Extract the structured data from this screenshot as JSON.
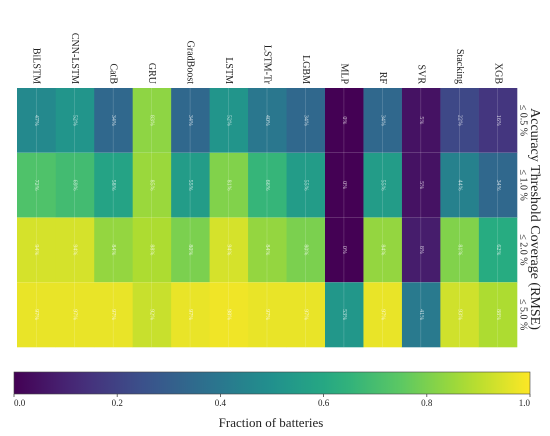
{
  "chart_data": {
    "type": "heatmap",
    "title": "Accuracy Threshold Coverage (RMSE)",
    "colorbar_label": "Fraction of batteries",
    "colorbar_ticks": [
      "0.0",
      "0.2",
      "0.4",
      "0.6",
      "0.8",
      "1.0"
    ],
    "models": [
      "XGB",
      "Stacking",
      "SVR",
      "RF",
      "MLP",
      "LGBM",
      "LSTM-Tr",
      "LSTM",
      "GradBoost",
      "GRU",
      "CatB",
      "CNN-LSTM",
      "BiLSTM"
    ],
    "thresholds": [
      "≤ 0.5 %",
      "≤ 1.0 %",
      "≤ 2.0 %",
      "≤ 5.0 %"
    ],
    "values": [
      [
        0.16,
        0.34,
        0.62,
        0.88
      ],
      [
        0.22,
        0.44,
        0.81,
        0.93
      ],
      [
        0.05,
        0.05,
        0.08,
        0.41
      ],
      [
        0.34,
        0.55,
        0.84,
        0.97
      ],
      [
        0.0,
        0.0,
        0.0,
        0.53
      ],
      [
        0.34,
        0.55,
        0.8,
        0.97
      ],
      [
        0.4,
        0.66,
        0.84,
        0.97
      ],
      [
        0.52,
        0.81,
        0.94,
        0.98
      ],
      [
        0.34,
        0.55,
        0.8,
        0.97
      ],
      [
        0.83,
        0.85,
        0.88,
        0.92
      ],
      [
        0.34,
        0.58,
        0.84,
        0.97
      ],
      [
        0.52,
        0.69,
        0.94,
        0.97
      ],
      [
        0.47,
        0.72,
        0.94,
        0.97
      ]
    ],
    "cell_labels": [
      [
        "16%",
        "34%",
        "62%",
        "88%"
      ],
      [
        "22%",
        "44%",
        "81%",
        "93%"
      ],
      [
        "5%",
        "5%",
        "8%",
        "41%"
      ],
      [
        "34%",
        "55%",
        "84%",
        "97%"
      ],
      [
        "0%",
        "0%",
        "0%",
        "53%"
      ],
      [
        "34%",
        "55%",
        "80%",
        "97%"
      ],
      [
        "40%",
        "66%",
        "84%",
        "97%"
      ],
      [
        "52%",
        "81%",
        "94%",
        "98%"
      ],
      [
        "34%",
        "55%",
        "80%",
        "97%"
      ],
      [
        "83%",
        "85%",
        "88%",
        "92%"
      ],
      [
        "34%",
        "58%",
        "84%",
        "97%"
      ],
      [
        "52%",
        "69%",
        "94%",
        "97%"
      ],
      [
        "47%",
        "72%",
        "94%",
        "97%"
      ]
    ],
    "colormap": "viridis",
    "vmin": 0,
    "vmax": 1
  }
}
